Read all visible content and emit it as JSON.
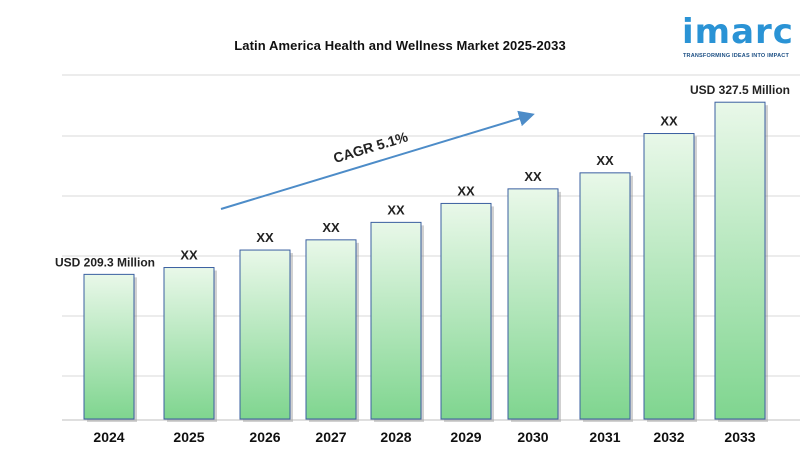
{
  "title": "Latin America Health and Wellness Market  2025-2033",
  "logo": {
    "word": "imarc",
    "tagline": "TRANSFORMING IDEAS INTO IMPACT"
  },
  "colors": {
    "bar_top": "#e9f8e9",
    "bar_bottom": "#7fd58f",
    "bar_outline": "#3a5fa0",
    "arrow": "#4d8cc8",
    "grid": "#d9d9d9",
    "brand": "#2a93d5"
  },
  "chart_data": {
    "type": "bar",
    "title": "Latin America Health and Wellness Market  2025-2033",
    "categories": [
      "2024",
      "2025",
      "2026",
      "2027",
      "2028",
      "2029",
      "2030",
      "2031",
      "2032",
      "2033"
    ],
    "values": [
      209.3,
      214.0,
      226.0,
      233.0,
      245.0,
      258.0,
      268.0,
      279.0,
      306.0,
      327.5
    ],
    "data_labels": [
      "USD 209.3 Million",
      "XX",
      "XX",
      "XX",
      "XX",
      "XX",
      "XX",
      "XX",
      "XX",
      "USD 327.5 Million"
    ],
    "annotation": "CAGR 5.1%",
    "ylim": [
      110,
      340
    ],
    "grid": true,
    "legend": "none"
  }
}
